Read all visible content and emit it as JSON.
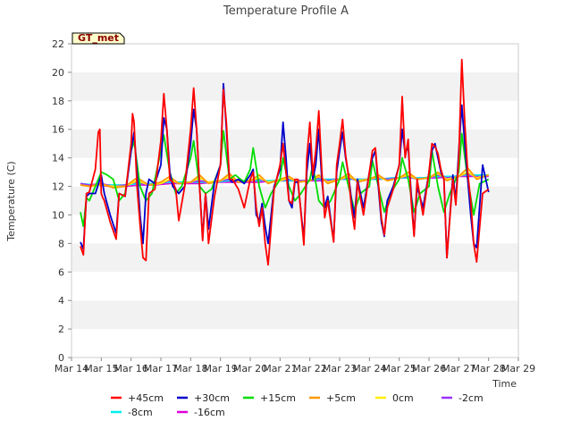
{
  "chart_data": {
    "type": "line",
    "title": "Temperature Profile A",
    "xlabel": "Time",
    "ylabel": "Temperature (C)",
    "badge": "GT_met",
    "ylim": [
      0,
      22
    ],
    "yticks": [
      0,
      2,
      4,
      6,
      8,
      10,
      12,
      14,
      16,
      18,
      20,
      22
    ],
    "xlim": [
      14,
      29
    ],
    "xticks": [
      14,
      15,
      16,
      17,
      18,
      19,
      20,
      21,
      22,
      23,
      24,
      25,
      26,
      27,
      28,
      29
    ],
    "xtick_labels": [
      "Mar 14",
      "Mar 15",
      "Mar 16",
      "Mar 17",
      "Mar 18",
      "Mar 19",
      "Mar 20",
      "Mar 21",
      "Mar 22",
      "Mar 23",
      "Mar 24",
      "Mar 25",
      "Mar 26",
      "Mar 27",
      "Mar 28",
      "Mar 29"
    ],
    "grid": "horizontal bands",
    "legend_position": "bottom",
    "series": [
      {
        "name": "+45cm",
        "color": "#ff0000",
        "x": [
          14.3,
          14.4,
          14.5,
          14.6,
          14.8,
          14.9,
          14.95,
          15.0,
          15.05,
          15.1,
          15.3,
          15.5,
          15.6,
          15.8,
          16.0,
          16.05,
          16.1,
          16.2,
          16.3,
          16.4,
          16.5,
          16.6,
          16.8,
          17.0,
          17.1,
          17.2,
          17.3,
          17.4,
          17.5,
          17.6,
          17.8,
          18.0,
          18.1,
          18.2,
          18.3,
          18.4,
          18.5,
          18.6,
          18.8,
          19.0,
          19.1,
          19.2,
          19.3,
          19.4,
          19.6,
          19.8,
          20.0,
          20.1,
          20.2,
          20.3,
          20.4,
          20.5,
          20.6,
          20.8,
          21.0,
          21.1,
          21.2,
          21.3,
          21.4,
          21.5,
          21.6,
          21.8,
          21.9,
          22.0,
          22.1,
          22.2,
          22.3,
          22.4,
          22.5,
          22.6,
          22.8,
          22.9,
          23.0,
          23.1,
          23.2,
          23.3,
          23.4,
          23.5,
          23.6,
          23.8,
          24.0,
          24.1,
          24.2,
          24.3,
          24.4,
          24.5,
          24.6,
          24.8,
          25.0,
          25.1,
          25.2,
          25.3,
          25.4,
          25.5,
          25.6,
          25.8,
          26.0,
          26.1,
          26.2,
          26.3,
          26.4,
          26.5,
          26.6,
          26.8,
          26.9,
          27.0,
          27.1,
          27.2,
          27.3,
          27.4,
          27.5,
          27.6,
          27.8,
          28.0
        ],
        "y": [
          7.8,
          7.2,
          11.5,
          11.6,
          13.2,
          15.8,
          16.0,
          11.5,
          11.2,
          11.0,
          9.5,
          8.3,
          11.5,
          11.3,
          15.0,
          17.1,
          16.5,
          12.0,
          9.3,
          7.0,
          6.8,
          11.5,
          11.8,
          15.2,
          18.5,
          16.0,
          12.5,
          12.3,
          11.8,
          9.6,
          12.0,
          16.0,
          18.9,
          16.0,
          12.0,
          8.2,
          11.5,
          8.0,
          11.3,
          13.5,
          18.8,
          16.5,
          12.5,
          12.5,
          11.8,
          10.5,
          12.5,
          13.0,
          10.5,
          9.2,
          10.5,
          8.0,
          6.5,
          11.8,
          13.5,
          15.0,
          13.0,
          11.0,
          10.8,
          12.5,
          12.5,
          7.9,
          14.0,
          16.5,
          12.8,
          14.5,
          17.3,
          13.2,
          9.8,
          11.0,
          8.1,
          13.5,
          15.0,
          16.7,
          14.2,
          12.7,
          10.5,
          9.0,
          12.3,
          10.0,
          13.0,
          14.5,
          14.7,
          12.3,
          9.8,
          8.6,
          10.5,
          11.8,
          13.5,
          18.3,
          14.0,
          15.3,
          11.0,
          8.5,
          12.5,
          10.0,
          13.0,
          15.0,
          14.8,
          14.3,
          13.2,
          12.5,
          7.0,
          12.5,
          10.7,
          14.0,
          20.9,
          16.5,
          13.0,
          11.0,
          8.0,
          6.7,
          11.5,
          11.8
        ]
      },
      {
        "name": "+30cm",
        "color": "#0000cc",
        "x": [
          14.3,
          14.4,
          14.5,
          14.6,
          14.8,
          15.0,
          15.1,
          15.3,
          15.5,
          15.6,
          15.8,
          16.0,
          16.1,
          16.2,
          16.3,
          16.4,
          16.5,
          16.6,
          16.8,
          17.0,
          17.1,
          17.2,
          17.3,
          17.4,
          17.6,
          17.8,
          18.0,
          18.1,
          18.2,
          18.3,
          18.4,
          18.5,
          18.6,
          18.8,
          19.0,
          19.1,
          19.2,
          19.3,
          19.4,
          19.6,
          19.8,
          20.0,
          20.1,
          20.2,
          20.3,
          20.4,
          20.5,
          20.6,
          20.8,
          21.0,
          21.1,
          21.2,
          21.3,
          21.4,
          21.5,
          21.6,
          21.8,
          21.9,
          22.0,
          22.1,
          22.2,
          22.3,
          22.4,
          22.5,
          22.6,
          22.8,
          22.9,
          23.0,
          23.1,
          23.2,
          23.3,
          23.4,
          23.5,
          23.6,
          23.8,
          24.0,
          24.1,
          24.2,
          24.3,
          24.4,
          24.5,
          24.6,
          24.8,
          25.0,
          25.1,
          25.2,
          25.3,
          25.4,
          25.5,
          25.6,
          25.8,
          26.0,
          26.1,
          26.2,
          26.3,
          26.4,
          26.5,
          26.6,
          26.8,
          26.9,
          27.0,
          27.1,
          27.2,
          27.3,
          27.4,
          27.5,
          27.6,
          27.8,
          28.0
        ],
        "y": [
          8.1,
          7.6,
          11.3,
          11.5,
          11.5,
          12.8,
          11.5,
          10.0,
          8.7,
          11.5,
          11.3,
          14.5,
          15.8,
          13.0,
          10.0,
          8.0,
          11.5,
          12.5,
          12.2,
          13.5,
          16.8,
          16.0,
          13.0,
          12.0,
          11.5,
          12.0,
          15.0,
          17.4,
          16.0,
          12.0,
          8.4,
          11.5,
          9.0,
          12.3,
          13.5,
          19.2,
          16.0,
          12.5,
          12.3,
          12.5,
          12.2,
          12.8,
          13.2,
          10.0,
          9.6,
          10.8,
          9.2,
          8.0,
          12.0,
          13.2,
          16.5,
          14.0,
          11.0,
          10.5,
          12.3,
          12.3,
          8.3,
          13.0,
          15.0,
          12.5,
          13.5,
          16.0,
          12.5,
          10.5,
          11.3,
          8.2,
          13.0,
          14.5,
          15.8,
          14.0,
          12.8,
          11.0,
          9.8,
          12.5,
          10.5,
          13.0,
          14.0,
          14.5,
          12.0,
          9.5,
          8.5,
          11.0,
          12.0,
          13.5,
          16.0,
          14.3,
          14.8,
          11.5,
          8.6,
          12.0,
          10.5,
          13.0,
          14.5,
          15.0,
          14.0,
          13.0,
          12.5,
          7.0,
          12.8,
          11.0,
          14.5,
          17.7,
          15.0,
          12.5,
          10.0,
          8.0,
          7.7,
          13.5,
          11.6
        ]
      },
      {
        "name": "+15cm",
        "color": "#00dd00",
        "x": [
          14.3,
          14.4,
          14.5,
          14.6,
          14.8,
          15.0,
          15.2,
          15.4,
          15.6,
          15.8,
          16.0,
          16.1,
          16.3,
          16.5,
          16.7,
          17.0,
          17.1,
          17.3,
          17.5,
          17.7,
          18.0,
          18.1,
          18.3,
          18.5,
          18.7,
          19.0,
          19.1,
          19.3,
          19.5,
          19.8,
          20.0,
          20.1,
          20.3,
          20.5,
          20.7,
          21.0,
          21.1,
          21.3,
          21.5,
          21.7,
          22.0,
          22.1,
          22.3,
          22.5,
          22.7,
          23.0,
          23.1,
          23.3,
          23.5,
          23.7,
          24.0,
          24.1,
          24.3,
          24.5,
          24.7,
          25.0,
          25.1,
          25.3,
          25.5,
          25.7,
          26.0,
          26.1,
          26.3,
          26.5,
          26.7,
          27.0,
          27.1,
          27.3,
          27.5,
          27.7,
          28.0
        ],
        "y": [
          10.2,
          9.2,
          11.2,
          11.0,
          12.0,
          13.0,
          12.8,
          12.5,
          11.0,
          11.5,
          14.5,
          15.2,
          12.0,
          11.0,
          11.5,
          14.5,
          15.6,
          13.0,
          11.5,
          12.0,
          14.0,
          15.2,
          12.0,
          11.5,
          11.8,
          13.5,
          15.9,
          12.5,
          12.8,
          12.3,
          13.2,
          14.7,
          12.0,
          10.5,
          11.5,
          12.5,
          14.0,
          12.0,
          11.0,
          11.5,
          12.5,
          13.5,
          11.0,
          10.5,
          11.0,
          12.5,
          13.7,
          12.0,
          10.3,
          11.5,
          12.0,
          13.8,
          12.0,
          10.2,
          11.5,
          12.5,
          14.0,
          12.5,
          10.2,
          11.5,
          12.0,
          14.5,
          12.0,
          10.2,
          11.5,
          13.0,
          15.7,
          12.5,
          10.0,
          12.2,
          12.5
        ]
      },
      {
        "name": "+5cm",
        "color": "#ff9900",
        "x": [
          14.3,
          14.6,
          15.0,
          15.4,
          15.8,
          16.2,
          16.6,
          17.0,
          17.3,
          17.6,
          18.0,
          18.3,
          18.6,
          19.0,
          19.3,
          19.6,
          20.0,
          20.3,
          20.6,
          21.0,
          21.3,
          21.6,
          22.0,
          22.3,
          22.6,
          23.0,
          23.3,
          23.6,
          24.0,
          24.3,
          24.6,
          25.0,
          25.3,
          25.6,
          26.0,
          26.3,
          26.6,
          27.0,
          27.3,
          27.6,
          28.0
        ],
        "y": [
          12.1,
          12.0,
          12.2,
          11.9,
          12.0,
          12.6,
          12.1,
          12.3,
          12.7,
          12.2,
          12.3,
          12.8,
          12.2,
          12.4,
          12.9,
          12.3,
          12.4,
          12.8,
          12.2,
          12.5,
          12.7,
          12.3,
          12.4,
          12.8,
          12.2,
          12.5,
          12.9,
          12.3,
          12.5,
          12.8,
          12.4,
          12.6,
          13.0,
          12.5,
          12.6,
          13.0,
          12.4,
          12.7,
          13.3,
          12.5,
          12.8
        ]
      },
      {
        "name": "0cm",
        "color": "#ffee00",
        "x": [
          14.3,
          14.6,
          15.0,
          15.4,
          15.8,
          16.2,
          16.6,
          17.0,
          17.3,
          17.6,
          18.0,
          18.3,
          18.6,
          19.0,
          19.3,
          19.6,
          20.0,
          20.3,
          20.6,
          21.0,
          21.3,
          21.6,
          22.0,
          22.3,
          22.6,
          23.0,
          23.3,
          23.6,
          24.0,
          24.3,
          24.6,
          25.0,
          25.3,
          25.6,
          26.0,
          26.3,
          26.6,
          27.0,
          27.3,
          27.6,
          28.0
        ],
        "y": [
          12.1,
          12.0,
          12.1,
          12.0,
          12.0,
          12.4,
          12.1,
          12.2,
          12.5,
          12.2,
          12.3,
          12.6,
          12.3,
          12.4,
          12.7,
          12.3,
          12.4,
          12.6,
          12.3,
          12.4,
          12.6,
          12.3,
          12.4,
          12.7,
          12.3,
          12.5,
          12.7,
          12.4,
          12.5,
          12.7,
          12.4,
          12.6,
          12.8,
          12.5,
          12.6,
          12.9,
          12.5,
          12.7,
          13.0,
          12.6,
          12.8
        ]
      },
      {
        "name": "-2cm",
        "color": "#9933ff",
        "x": [
          14.3,
          14.6,
          15.0,
          15.4,
          15.8,
          16.2,
          16.6,
          17.0,
          17.3,
          17.6,
          18.0,
          18.3,
          18.6,
          19.0,
          19.3,
          19.6,
          20.0,
          20.3,
          20.6,
          21.0,
          21.3,
          21.6,
          22.0,
          22.3,
          22.6,
          23.0,
          23.3,
          23.6,
          24.0,
          24.3,
          24.6,
          25.0,
          25.3,
          25.6,
          26.0,
          26.3,
          26.6,
          27.0,
          27.3,
          27.6,
          28.0
        ],
        "y": [
          12.2,
          12.1,
          12.2,
          12.0,
          12.1,
          12.3,
          12.1,
          12.2,
          12.4,
          12.2,
          12.3,
          12.4,
          12.3,
          12.4,
          12.5,
          12.3,
          12.4,
          12.5,
          12.3,
          12.4,
          12.5,
          12.4,
          12.4,
          12.6,
          12.4,
          12.5,
          12.6,
          12.4,
          12.5,
          12.6,
          12.5,
          12.6,
          12.7,
          12.5,
          12.6,
          12.8,
          12.6,
          12.7,
          12.9,
          12.6,
          12.8
        ]
      },
      {
        "name": "-8cm",
        "color": "#00eeee",
        "x": [
          14.3,
          14.8,
          15.3,
          15.8,
          16.3,
          16.8,
          17.3,
          17.8,
          18.3,
          18.8,
          19.3,
          19.8,
          20.3,
          20.8,
          21.3,
          21.8,
          22.3,
          22.8,
          23.3,
          23.8,
          24.3,
          24.8,
          25.3,
          25.8,
          26.3,
          26.8,
          27.3,
          27.8,
          28.0
        ],
        "y": [
          12.2,
          12.1,
          12.1,
          12.1,
          12.2,
          12.2,
          12.3,
          12.3,
          12.3,
          12.3,
          12.4,
          12.4,
          12.4,
          12.4,
          12.4,
          12.4,
          12.5,
          12.5,
          12.5,
          12.5,
          12.5,
          12.6,
          12.6,
          12.6,
          12.7,
          12.7,
          12.8,
          12.8,
          12.8
        ]
      },
      {
        "name": "-16cm",
        "color": "#dd00dd",
        "x": [
          14.3,
          14.8,
          15.3,
          15.8,
          16.3,
          16.8,
          17.3,
          17.8,
          18.3,
          18.8,
          19.3,
          19.8,
          20.3,
          20.8,
          21.3,
          21.8,
          22.3,
          22.8,
          23.3,
          23.8,
          24.3,
          24.8,
          25.3,
          25.8,
          26.3,
          26.8,
          27.3,
          27.8,
          28.0
        ],
        "y": [
          12.1,
          12.1,
          12.0,
          12.0,
          12.1,
          12.1,
          12.2,
          12.2,
          12.2,
          12.3,
          12.3,
          12.3,
          12.3,
          12.4,
          12.4,
          12.4,
          12.4,
          12.5,
          12.5,
          12.5,
          12.5,
          12.6,
          12.6,
          12.6,
          12.6,
          12.7,
          12.7,
          12.7,
          12.7
        ]
      }
    ]
  }
}
